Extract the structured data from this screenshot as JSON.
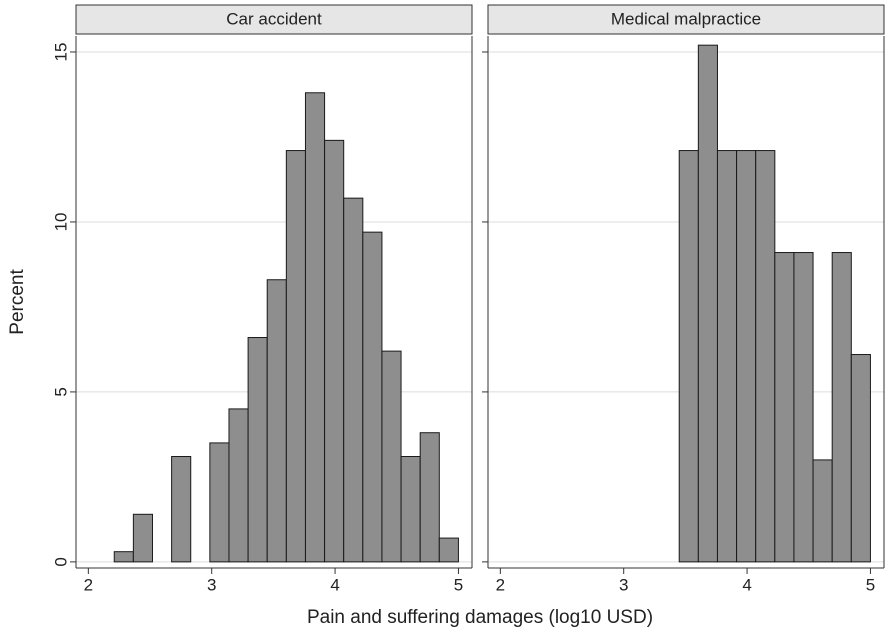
{
  "xlabel": "Pain and suffering damages (log10 USD)",
  "ylabel": "Percent",
  "chart_data": [
    {
      "type": "histogram",
      "title": "Car accident",
      "bins": [
        2.21,
        2.365,
        2.52,
        2.675,
        2.83,
        2.985,
        3.14,
        3.295,
        3.45,
        3.605,
        3.76,
        3.915,
        4.07,
        4.225,
        4.38,
        4.535,
        4.69,
        4.845,
        5.0
      ],
      "values": [
        0.3,
        1.4,
        0,
        3.1,
        0,
        3.5,
        4.5,
        6.6,
        8.3,
        12.1,
        13.8,
        12.4,
        10.7,
        9.7,
        6.2,
        3.1,
        3.8,
        0.7
      ],
      "color": "#8e8e8e",
      "xlim": [
        1.9,
        5.11
      ],
      "ylim": [
        -0.18,
        15.47
      ],
      "xticks": [
        2,
        3,
        4,
        5
      ],
      "yticks": [
        0,
        5,
        10,
        15
      ],
      "grid": true
    },
    {
      "type": "histogram",
      "title": "Medical malpractice",
      "bins": [
        3.45,
        3.605,
        3.76,
        3.915,
        4.07,
        4.225,
        4.38,
        4.535,
        4.69,
        4.845,
        5.0
      ],
      "values": [
        12.1,
        15.2,
        12.1,
        12.1,
        12.1,
        9.1,
        9.1,
        3.0,
        9.1,
        6.1
      ],
      "color": "#8e8e8e",
      "xlim": [
        1.9,
        5.11
      ],
      "ylim": [
        -0.18,
        15.47
      ],
      "xticks": [
        2,
        3,
        4,
        5
      ],
      "yticks": [
        0,
        5,
        10,
        15
      ],
      "grid": true
    }
  ]
}
